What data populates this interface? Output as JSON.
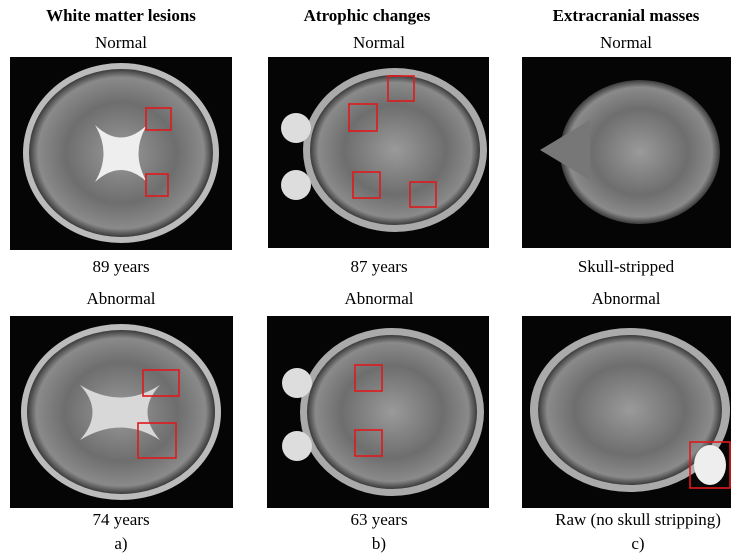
{
  "columns": [
    {
      "title": "White matter lesions",
      "panel": "a)",
      "rows": [
        {
          "label": "Normal",
          "caption": "89 years"
        },
        {
          "label": "Abnormal",
          "caption": "74 years"
        }
      ]
    },
    {
      "title": "Atrophic changes",
      "panel": "b)",
      "rows": [
        {
          "label": "Normal",
          "caption": "87 years"
        },
        {
          "label": "Abnormal",
          "caption": "63 years"
        }
      ]
    },
    {
      "title": "Extracranial masses",
      "panel": "c)",
      "rows": [
        {
          "label": "Normal",
          "caption": "Skull-stripped"
        },
        {
          "label": "Abnormal",
          "caption": "Raw (no skull stripping)"
        }
      ]
    }
  ]
}
